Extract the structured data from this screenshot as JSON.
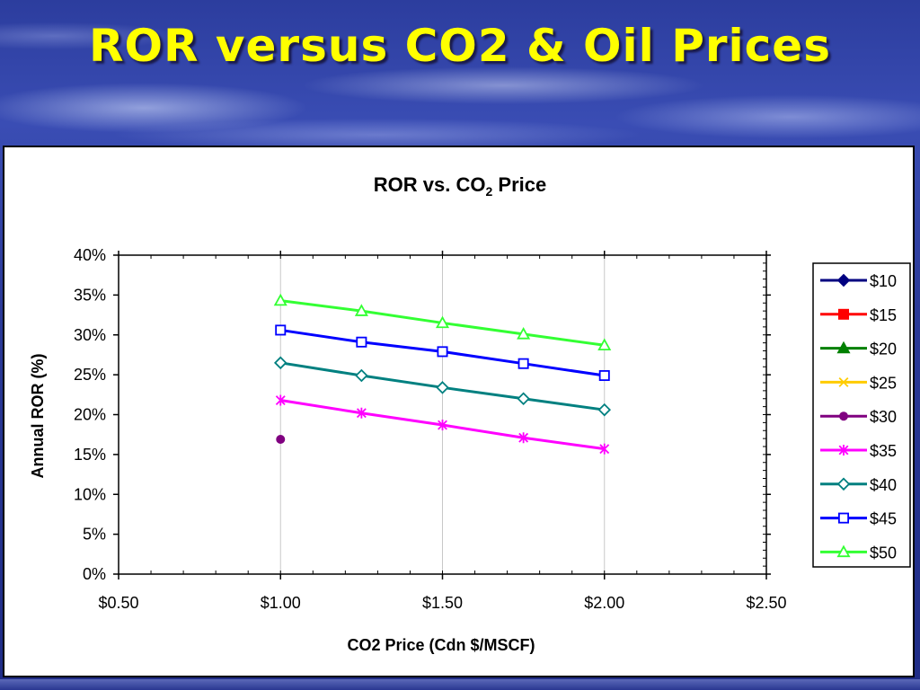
{
  "slide": {
    "title": "ROR versus CO2 & Oil Prices"
  },
  "chart_data": {
    "type": "line",
    "title_main": "ROR vs. CO",
    "title_sub": "2",
    "title_end": " Price",
    "xlabel": "CO2 Price (Cdn $/MSCF)",
    "ylabel": "Annual ROR (%)",
    "xlim": [
      0.5,
      2.5
    ],
    "ylim": [
      0,
      0.4
    ],
    "xticks": [
      0.5,
      1.0,
      1.5,
      2.0,
      2.5
    ],
    "xtick_labels": [
      "$0.50",
      "$1.00",
      "$1.50",
      "$2.00",
      "$2.50"
    ],
    "yticks": [
      0,
      0.05,
      0.1,
      0.15,
      0.2,
      0.25,
      0.3,
      0.35,
      0.4
    ],
    "ytick_labels": [
      "0%",
      "5%",
      "10%",
      "15%",
      "20%",
      "25%",
      "30%",
      "35%",
      "40%"
    ],
    "grid": "vertical",
    "legend_position": "right",
    "series": [
      {
        "name": "$10",
        "color": "#000080",
        "marker": "diamond-filled",
        "x": [],
        "y": []
      },
      {
        "name": "$15",
        "color": "#ff0000",
        "marker": "square-filled",
        "x": [],
        "y": []
      },
      {
        "name": "$20",
        "color": "#008000",
        "marker": "triangle-filled",
        "x": [],
        "y": []
      },
      {
        "name": "$25",
        "color": "#ffcc00",
        "marker": "x",
        "x": [],
        "y": []
      },
      {
        "name": "$30",
        "color": "#800080",
        "marker": "circle-filled",
        "x": [
          1.0
        ],
        "y": [
          0.169
        ]
      },
      {
        "name": "$35",
        "color": "#ff00ff",
        "marker": "asterisk",
        "x": [
          1.0,
          1.25,
          1.5,
          1.75,
          2.0
        ],
        "y": [
          0.218,
          0.202,
          0.187,
          0.171,
          0.157
        ]
      },
      {
        "name": "$40",
        "color": "#008080",
        "marker": "diamond-open",
        "x": [
          1.0,
          1.25,
          1.5,
          1.75,
          2.0
        ],
        "y": [
          0.265,
          0.249,
          0.234,
          0.22,
          0.206
        ]
      },
      {
        "name": "$45",
        "color": "#0000ff",
        "marker": "square-open",
        "x": [
          1.0,
          1.25,
          1.5,
          1.75,
          2.0
        ],
        "y": [
          0.306,
          0.291,
          0.279,
          0.264,
          0.249
        ]
      },
      {
        "name": "$50",
        "color": "#33ff33",
        "marker": "triangle-open",
        "x": [
          1.0,
          1.25,
          1.5,
          1.75,
          2.0
        ],
        "y": [
          0.343,
          0.33,
          0.315,
          0.301,
          0.287
        ]
      }
    ]
  }
}
